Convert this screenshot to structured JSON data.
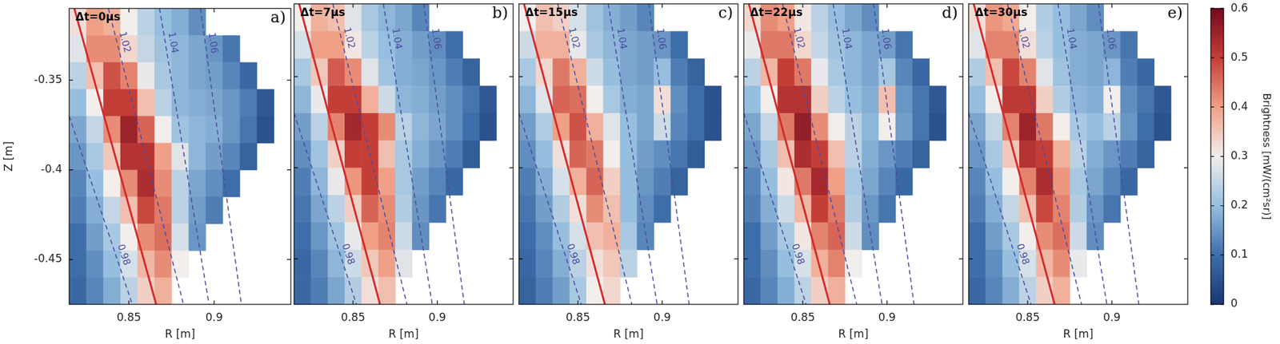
{
  "chart_data": {
    "type": "heatmap",
    "x_label": "R [m]",
    "y_label": "Z [m]",
    "xlim": [
      0.815,
      0.945
    ],
    "xticks": [
      0.85,
      0.9
    ],
    "ylim": [
      -0.475,
      -0.31
    ],
    "yticks": [
      -0.35,
      -0.4,
      -0.45
    ],
    "r_edges": [
      0.815,
      0.825,
      0.835,
      0.845,
      0.855,
      0.865,
      0.875,
      0.885,
      0.895,
      0.905,
      0.915,
      0.925,
      0.935,
      0.945
    ],
    "z_edges": [
      -0.31,
      -0.325,
      -0.34,
      -0.355,
      -0.37,
      -0.385,
      -0.4,
      -0.415,
      -0.43,
      -0.445,
      -0.46,
      -0.475
    ],
    "separatrix": {
      "color": "#d42a2a",
      "r": [
        0.818,
        0.866
      ],
      "z": [
        -0.31,
        -0.475
      ]
    },
    "contours": [
      {
        "level": 0.98,
        "color": "#4b4ba0",
        "line_style": "dashed",
        "r": [
          0.815,
          0.852
        ],
        "z": [
          -0.37,
          -0.475
        ]
      },
      {
        "level": 1.02,
        "color": "#4b4ba0",
        "line_style": "dashed",
        "r": [
          0.838,
          0.882
        ],
        "z": [
          -0.31,
          -0.475
        ]
      },
      {
        "level": 1.04,
        "color": "#4b4ba0",
        "line_style": "dashed",
        "r": [
          0.868,
          0.897
        ],
        "z": [
          -0.31,
          -0.475
        ]
      },
      {
        "level": 1.06,
        "color": "#4b4ba0",
        "line_style": "dashed",
        "r": [
          0.892,
          0.916
        ],
        "z": [
          -0.31,
          -0.475
        ]
      }
    ],
    "colorbar": {
      "label": "Brightness [mW/(cm²sr)]",
      "range": [
        0,
        0.6
      ],
      "ticks": [
        0,
        0.1,
        0.2,
        0.3,
        0.4,
        0.5,
        0.6
      ]
    },
    "panels": [
      {
        "title": "Δt=0μs",
        "panel": "a)",
        "cells": [
          [
            0.32,
            0.4,
            0.38,
            0.3,
            0.24,
            0.2,
            0.18,
            0.14,
            null,
            null,
            null,
            null,
            null
          ],
          [
            0.28,
            0.42,
            0.42,
            0.33,
            0.25,
            0.21,
            0.19,
            0.17,
            0.15,
            0.11,
            null,
            null,
            null
          ],
          [
            0.24,
            0.36,
            0.48,
            0.43,
            0.29,
            0.22,
            0.19,
            0.17,
            0.16,
            0.13,
            0.09,
            null,
            null
          ],
          [
            0.2,
            0.3,
            0.5,
            0.5,
            0.36,
            0.24,
            0.19,
            0.18,
            0.17,
            0.15,
            0.12,
            0.06,
            null
          ],
          [
            0.17,
            0.25,
            0.42,
            0.55,
            0.46,
            0.3,
            0.21,
            0.19,
            0.18,
            0.15,
            0.11,
            0.05,
            null
          ],
          [
            0.15,
            0.22,
            0.35,
            0.52,
            0.52,
            0.4,
            0.28,
            0.19,
            0.16,
            0.13,
            0.08,
            null,
            null
          ],
          [
            0.13,
            0.2,
            0.3,
            0.42,
            0.53,
            0.42,
            0.24,
            0.17,
            0.14,
            0.1,
            null,
            null,
            null
          ],
          [
            0.12,
            0.18,
            0.25,
            0.36,
            0.49,
            0.44,
            0.24,
            0.16,
            0.12,
            null,
            null,
            null,
            null
          ],
          [
            0.1,
            0.16,
            0.22,
            0.3,
            0.42,
            0.45,
            0.27,
            0.15,
            null,
            null,
            null,
            null,
            null
          ],
          [
            0.1,
            0.14,
            0.2,
            0.27,
            0.37,
            0.42,
            0.3,
            null,
            null,
            null,
            null,
            null,
            null
          ],
          [
            0.09,
            0.13,
            0.18,
            0.24,
            0.34,
            0.38,
            null,
            null,
            null,
            null,
            null,
            null,
            null
          ]
        ]
      },
      {
        "title": "Δt=7μs",
        "panel": "b)",
        "tick_labels": "x",
        "cells": [
          [
            0.3,
            0.38,
            0.36,
            0.28,
            0.22,
            0.19,
            0.17,
            0.13,
            null,
            null,
            null,
            null,
            null
          ],
          [
            0.27,
            0.4,
            0.4,
            0.31,
            0.24,
            0.2,
            0.18,
            0.16,
            0.14,
            0.1,
            null,
            null,
            null
          ],
          [
            0.22,
            0.35,
            0.47,
            0.42,
            0.28,
            0.21,
            0.18,
            0.17,
            0.15,
            0.12,
            0.08,
            null,
            null
          ],
          [
            0.19,
            0.29,
            0.5,
            0.5,
            0.38,
            0.26,
            0.19,
            0.18,
            0.16,
            0.14,
            0.11,
            0.06,
            null
          ],
          [
            0.16,
            0.24,
            0.43,
            0.54,
            0.5,
            0.42,
            0.24,
            0.19,
            0.17,
            0.14,
            0.1,
            0.05,
            null
          ],
          [
            0.14,
            0.21,
            0.34,
            0.5,
            0.5,
            0.36,
            0.22,
            0.18,
            0.15,
            0.12,
            0.07,
            null,
            null
          ],
          [
            0.12,
            0.19,
            0.29,
            0.41,
            0.5,
            0.4,
            0.22,
            0.16,
            0.13,
            0.09,
            null,
            null,
            null
          ],
          [
            0.11,
            0.17,
            0.24,
            0.34,
            0.46,
            0.42,
            0.23,
            0.15,
            0.11,
            null,
            null,
            null,
            null
          ],
          [
            0.1,
            0.15,
            0.21,
            0.29,
            0.4,
            0.43,
            0.26,
            0.14,
            null,
            null,
            null,
            null,
            null
          ],
          [
            0.09,
            0.13,
            0.19,
            0.26,
            0.35,
            0.4,
            0.28,
            null,
            null,
            null,
            null,
            null,
            null
          ],
          [
            0.09,
            0.12,
            0.17,
            0.23,
            0.32,
            0.36,
            null,
            null,
            null,
            null,
            null,
            null,
            null
          ]
        ]
      },
      {
        "title": "Δt=15μs",
        "panel": "c)",
        "tick_labels": "x",
        "cells": [
          [
            0.3,
            0.36,
            0.34,
            0.27,
            0.21,
            0.18,
            0.16,
            0.13,
            null,
            null,
            null,
            null,
            null
          ],
          [
            0.26,
            0.38,
            0.38,
            0.29,
            0.22,
            0.19,
            0.17,
            0.16,
            0.15,
            0.1,
            null,
            null,
            null
          ],
          [
            0.22,
            0.33,
            0.44,
            0.38,
            0.26,
            0.2,
            0.17,
            0.16,
            0.2,
            0.12,
            0.08,
            null,
            null
          ],
          [
            0.19,
            0.28,
            0.46,
            0.45,
            0.3,
            0.22,
            0.18,
            0.17,
            0.32,
            0.14,
            0.1,
            0.05,
            null
          ],
          [
            0.16,
            0.23,
            0.4,
            0.48,
            0.38,
            0.28,
            0.2,
            0.17,
            0.26,
            0.13,
            0.1,
            0.05,
            null
          ],
          [
            0.14,
            0.2,
            0.32,
            0.46,
            0.44,
            0.3,
            0.2,
            0.16,
            0.14,
            0.11,
            0.07,
            null,
            null
          ],
          [
            0.12,
            0.18,
            0.27,
            0.38,
            0.46,
            0.34,
            0.2,
            0.15,
            0.12,
            0.08,
            null,
            null,
            null
          ],
          [
            0.11,
            0.16,
            0.23,
            0.32,
            0.42,
            0.36,
            0.2,
            0.14,
            0.1,
            null,
            null,
            null,
            null
          ],
          [
            0.1,
            0.14,
            0.2,
            0.27,
            0.36,
            0.38,
            0.22,
            0.13,
            null,
            null,
            null,
            null,
            null
          ],
          [
            0.09,
            0.13,
            0.18,
            0.24,
            0.32,
            0.35,
            0.24,
            null,
            null,
            null,
            null,
            null,
            null
          ],
          [
            0.08,
            0.12,
            0.16,
            0.22,
            0.3,
            0.33,
            null,
            null,
            null,
            null,
            null,
            null,
            null
          ]
        ]
      },
      {
        "title": "Δt=22μs",
        "panel": "d)",
        "tick_labels": "x",
        "cells": [
          [
            0.33,
            0.42,
            0.4,
            0.31,
            0.24,
            0.2,
            0.17,
            0.14,
            null,
            null,
            null,
            null,
            null
          ],
          [
            0.29,
            0.44,
            0.44,
            0.33,
            0.25,
            0.21,
            0.19,
            0.17,
            0.16,
            0.11,
            null,
            null,
            null
          ],
          [
            0.24,
            0.37,
            0.5,
            0.44,
            0.29,
            0.22,
            0.19,
            0.17,
            0.22,
            0.13,
            0.09,
            null,
            null
          ],
          [
            0.2,
            0.3,
            0.52,
            0.52,
            0.34,
            0.24,
            0.2,
            0.18,
            0.36,
            0.15,
            0.11,
            0.06,
            null
          ],
          [
            0.17,
            0.25,
            0.44,
            0.56,
            0.42,
            0.3,
            0.24,
            0.19,
            0.3,
            0.16,
            0.11,
            0.05,
            null
          ],
          [
            0.15,
            0.22,
            0.36,
            0.53,
            0.5,
            0.36,
            0.24,
            0.18,
            0.15,
            0.12,
            0.08,
            null,
            null
          ],
          [
            0.13,
            0.2,
            0.31,
            0.44,
            0.54,
            0.4,
            0.22,
            0.17,
            0.13,
            0.09,
            null,
            null,
            null
          ],
          [
            0.12,
            0.18,
            0.26,
            0.37,
            0.5,
            0.44,
            0.23,
            0.15,
            0.11,
            null,
            null,
            null,
            null
          ],
          [
            0.1,
            0.16,
            0.22,
            0.31,
            0.43,
            0.46,
            0.26,
            0.14,
            null,
            null,
            null,
            null,
            null
          ],
          [
            0.1,
            0.14,
            0.2,
            0.27,
            0.38,
            0.43,
            0.3,
            null,
            null,
            null,
            null,
            null,
            null
          ],
          [
            0.09,
            0.13,
            0.18,
            0.24,
            0.34,
            0.38,
            null,
            null,
            null,
            null,
            null,
            null,
            null
          ]
        ]
      },
      {
        "title": "Δt=30μs",
        "panel": "e)",
        "tick_labels": "x",
        "cells": [
          [
            0.32,
            0.41,
            0.39,
            0.3,
            0.23,
            0.2,
            0.17,
            0.14,
            null,
            null,
            null,
            null,
            null
          ],
          [
            0.28,
            0.43,
            0.43,
            0.32,
            0.24,
            0.2,
            0.18,
            0.17,
            0.15,
            0.11,
            null,
            null,
            null
          ],
          [
            0.23,
            0.36,
            0.49,
            0.43,
            0.28,
            0.21,
            0.18,
            0.17,
            0.19,
            0.12,
            0.09,
            null,
            null
          ],
          [
            0.2,
            0.3,
            0.51,
            0.51,
            0.34,
            0.23,
            0.19,
            0.18,
            0.3,
            0.14,
            0.11,
            0.06,
            null
          ],
          [
            0.17,
            0.25,
            0.43,
            0.55,
            0.44,
            0.3,
            0.22,
            0.2,
            0.24,
            0.15,
            0.1,
            0.05,
            null
          ],
          [
            0.15,
            0.22,
            0.35,
            0.52,
            0.5,
            0.38,
            0.24,
            0.18,
            0.15,
            0.12,
            0.08,
            null,
            null
          ],
          [
            0.13,
            0.2,
            0.3,
            0.43,
            0.53,
            0.41,
            0.22,
            0.17,
            0.13,
            0.09,
            null,
            null,
            null
          ],
          [
            0.12,
            0.18,
            0.25,
            0.36,
            0.49,
            0.43,
            0.23,
            0.15,
            0.11,
            null,
            null,
            null,
            null
          ],
          [
            0.1,
            0.16,
            0.22,
            0.3,
            0.42,
            0.45,
            0.26,
            0.14,
            null,
            null,
            null,
            null,
            null
          ],
          [
            0.1,
            0.14,
            0.2,
            0.27,
            0.37,
            0.42,
            0.29,
            null,
            null,
            null,
            null,
            null,
            null
          ],
          [
            0.09,
            0.13,
            0.18,
            0.24,
            0.34,
            0.38,
            null,
            null,
            null,
            null,
            null,
            null,
            null
          ]
        ]
      }
    ]
  }
}
